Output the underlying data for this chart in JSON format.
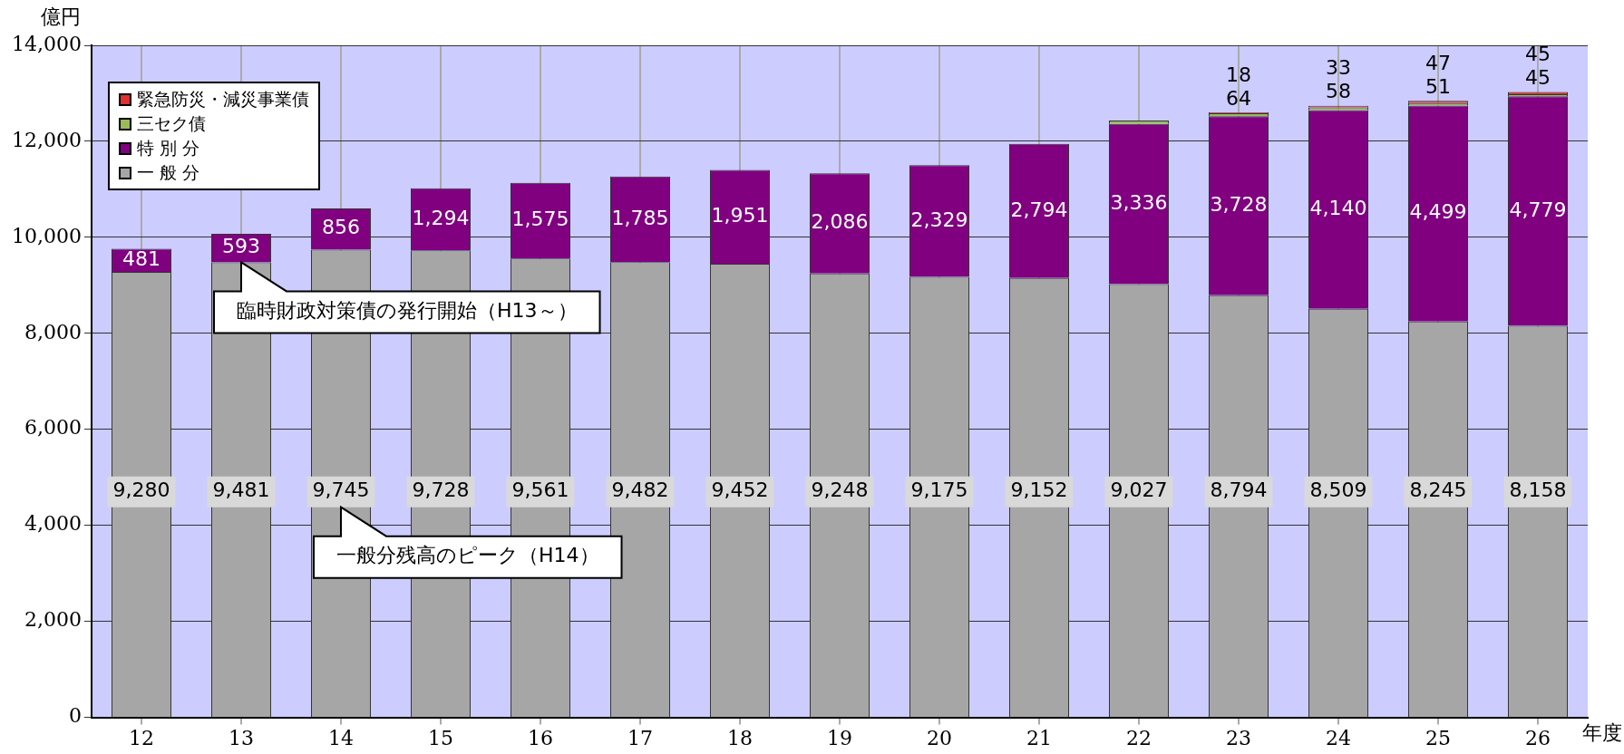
{
  "chart_data": {
    "type": "bar",
    "stacked": true,
    "ylabel": "億円",
    "xlabel": "年度",
    "categories": [
      "12",
      "13",
      "14",
      "15",
      "16",
      "17",
      "18",
      "19",
      "20",
      "21",
      "22",
      "23",
      "24",
      "25",
      "26"
    ],
    "series": [
      {
        "name": "一 般 分",
        "color": "#a6a6a6",
        "values": [
          9280,
          9481,
          9745,
          9728,
          9561,
          9482,
          9452,
          9248,
          9175,
          9152,
          9027,
          8794,
          8509,
          8245,
          8158
        ],
        "value_labels": [
          "9,280",
          "9,481",
          "9,745",
          "9,728",
          "9,561",
          "9,482",
          "9,452",
          "9,248",
          "9,175",
          "9,152",
          "9,027",
          "8,794",
          "8,509",
          "8,245",
          "8,158"
        ]
      },
      {
        "name": "特 別 分",
        "color": "#800080",
        "values": [
          481,
          593,
          856,
          1294,
          1575,
          1785,
          1951,
          2086,
          2329,
          2794,
          3336,
          3728,
          4140,
          4499,
          4779
        ],
        "value_labels": [
          "481",
          "593",
          "856",
          "1,294",
          "1,575",
          "1,785",
          "1,951",
          "2,086",
          "2,329",
          "2,794",
          "3,336",
          "3,728",
          "4,140",
          "4,499",
          "4,779"
        ]
      },
      {
        "name": "三セク債",
        "color": "#9bbb59",
        "values": [
          null,
          null,
          null,
          null,
          null,
          null,
          null,
          null,
          null,
          null,
          70,
          64,
          58,
          51,
          45
        ],
        "value_labels": [
          null,
          null,
          null,
          null,
          null,
          null,
          null,
          null,
          null,
          null,
          null,
          "64",
          "58",
          "51",
          "45"
        ]
      },
      {
        "name": "緊急防災・減災事業債",
        "color": "#e03030",
        "values": [
          null,
          null,
          null,
          null,
          null,
          null,
          null,
          null,
          null,
          null,
          null,
          18,
          33,
          47,
          45
        ],
        "value_labels": [
          null,
          null,
          null,
          null,
          null,
          null,
          null,
          null,
          null,
          null,
          null,
          "18",
          "33",
          "47",
          "45"
        ]
      }
    ],
    "ylim": [
      0,
      14000
    ],
    "yticks": [
      {
        "value": 0,
        "label": "0"
      },
      {
        "value": 2000,
        "label": "2,000"
      },
      {
        "value": 4000,
        "label": "4,000"
      },
      {
        "value": 6000,
        "label": "6,000"
      },
      {
        "value": 8000,
        "label": "8,000"
      },
      {
        "value": 10000,
        "label": "10,000"
      },
      {
        "value": 12000,
        "label": "12,000"
      },
      {
        "value": 14000,
        "label": "14,000"
      }
    ],
    "grid": true,
    "legend": "top left",
    "annotations": [
      {
        "text": "臨時財政対策債の発行開始（H13～）",
        "x": "13",
        "y": 9481
      },
      "一般分残高のピーク（H14）"
    ]
  }
}
